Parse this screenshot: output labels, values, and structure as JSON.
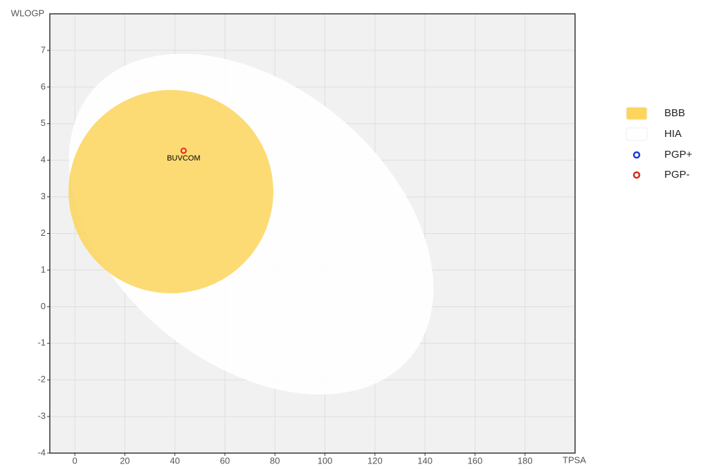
{
  "chart_data": {
    "type": "scatter",
    "x_label": "TPSA",
    "y_label": "WLOGP",
    "xlim": [
      -10,
      200
    ],
    "ylim": [
      -4,
      8
    ],
    "xticks": [
      0,
      20,
      40,
      60,
      80,
      100,
      120,
      140,
      160,
      180
    ],
    "yticks": [
      -4,
      -3,
      -2,
      -1,
      0,
      1,
      2,
      3,
      4,
      5,
      6,
      7
    ],
    "grid": true,
    "regions": [
      {
        "name": "BBB",
        "color": "#fdd55c"
      },
      {
        "name": "HIA",
        "color": "#ffffff"
      }
    ],
    "series": [
      {
        "name": "PGP+",
        "color": "#1a3fd6",
        "x": [],
        "values": [],
        "labels": []
      },
      {
        "name": "PGP-",
        "color": "#e0281c",
        "x": [
          43.5
        ],
        "values": [
          4.26
        ],
        "labels": [
          "BUVCOM"
        ]
      }
    ]
  }
}
